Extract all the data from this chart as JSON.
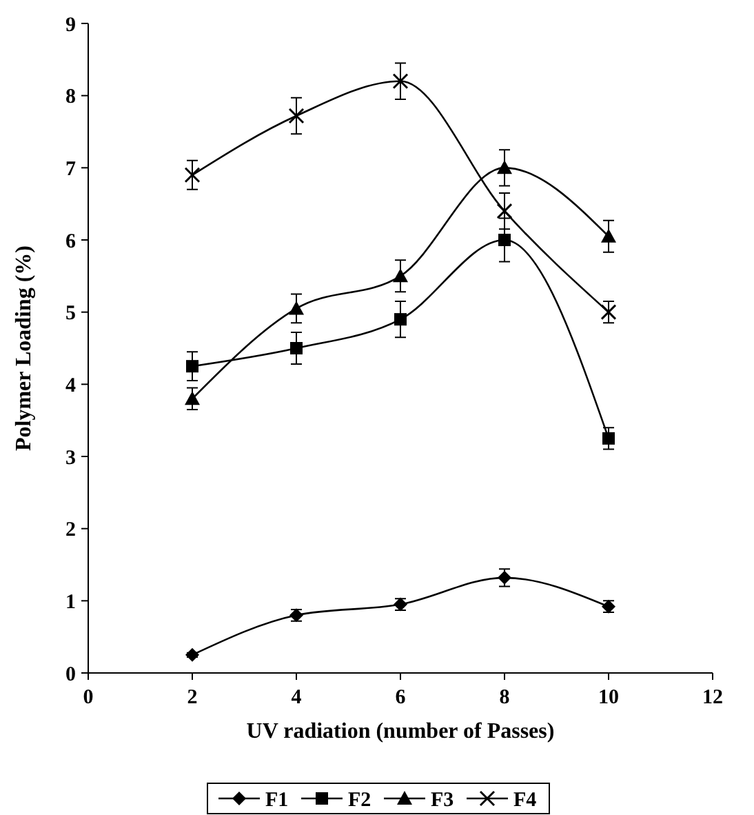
{
  "chart_data": {
    "type": "line",
    "xlabel": "UV radiation (number of Passes)",
    "ylabel": "Polymer Loading (%)",
    "x": [
      2,
      4,
      6,
      8,
      10
    ],
    "xlim": [
      0,
      12
    ],
    "xticks": [
      0,
      2,
      4,
      6,
      8,
      10,
      12
    ],
    "ylim": [
      0,
      9
    ],
    "yticks": [
      0,
      1,
      2,
      3,
      4,
      5,
      6,
      7,
      8,
      9
    ],
    "grid": false,
    "legend": "bottom",
    "line_style": "solid",
    "series": [
      {
        "name": "F1",
        "color": "#000000",
        "marker": "diamond",
        "values": [
          0.25,
          0.8,
          0.95,
          1.32,
          0.92
        ],
        "errors": [
          0.03,
          0.08,
          0.08,
          0.12,
          0.08
        ]
      },
      {
        "name": "F2",
        "color": "#000000",
        "marker": "square",
        "values": [
          4.25,
          4.5,
          4.9,
          6.0,
          3.25
        ],
        "errors": [
          0.2,
          0.22,
          0.25,
          0.3,
          0.15
        ]
      },
      {
        "name": "F3",
        "color": "#000000",
        "marker": "triangle",
        "values": [
          3.8,
          5.05,
          5.5,
          7.0,
          6.05
        ],
        "errors": [
          0.15,
          0.2,
          0.22,
          0.25,
          0.22
        ]
      },
      {
        "name": "F4",
        "color": "#000000",
        "marker": "cross",
        "values": [
          6.9,
          7.72,
          8.2,
          6.4,
          5.0
        ],
        "errors": [
          0.2,
          0.25,
          0.25,
          0.25,
          0.15
        ]
      }
    ]
  }
}
